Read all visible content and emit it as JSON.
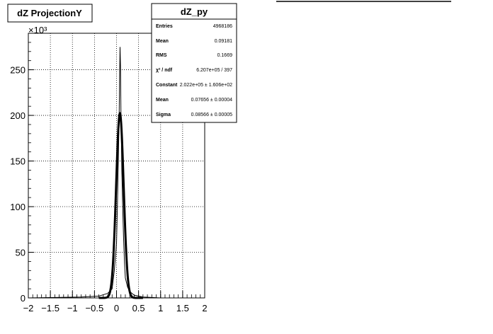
{
  "chart_data": {
    "type": "line",
    "title": "dZ ProjectionY",
    "xlabel": "",
    "ylabel": "",
    "y_multiplier": "×10³",
    "xlim": [
      -2,
      2
    ],
    "ylim": [
      0,
      290
    ],
    "x_ticks": [
      -2,
      -1.5,
      -1,
      -0.5,
      0,
      0.5,
      1,
      1.5,
      2
    ],
    "y_ticks": [
      0,
      50,
      100,
      150,
      200,
      250
    ],
    "grid": true,
    "series": [
      {
        "name": "",
        "style": "histogram",
        "x": [
          -2.0,
          -0.8,
          -0.4,
          -0.2,
          -0.1,
          -0.05,
          0.0,
          0.02,
          0.04,
          0.06,
          0.07,
          0.08,
          0.09,
          0.1,
          0.11,
          0.12,
          0.14,
          0.16,
          0.18,
          0.2,
          0.25,
          0.3,
          0.4,
          0.6,
          1.0,
          2.0
        ],
        "y": [
          0,
          1,
          2,
          5,
          10,
          30,
          60,
          100,
          150,
          200,
          240,
          275,
          255,
          205,
          175,
          140,
          100,
          65,
          40,
          22,
          12,
          7,
          3,
          1,
          0,
          0
        ]
      },
      {
        "name": "",
        "style": "gaussian-fit",
        "constant": 202.2,
        "mean": 0.07656,
        "sigma": 0.08566
      }
    ]
  },
  "stats_box": {
    "title": "dZ_py",
    "rows": [
      {
        "key": "Entries",
        "value": "4968186"
      },
      {
        "key": "Mean",
        "value": "0.09181"
      },
      {
        "key": "RMS",
        "value": "0.1669"
      },
      {
        "key": "χ² / ndf",
        "value": "6.207e+05 / 397"
      },
      {
        "key": "Constant",
        "value": "2.022e+05 ± 1.606e+02"
      },
      {
        "key": "Mean",
        "value": "0.07656 ± 0.00004"
      },
      {
        "key": "Sigma",
        "value": "0.08566 ± 0.00005"
      }
    ]
  }
}
